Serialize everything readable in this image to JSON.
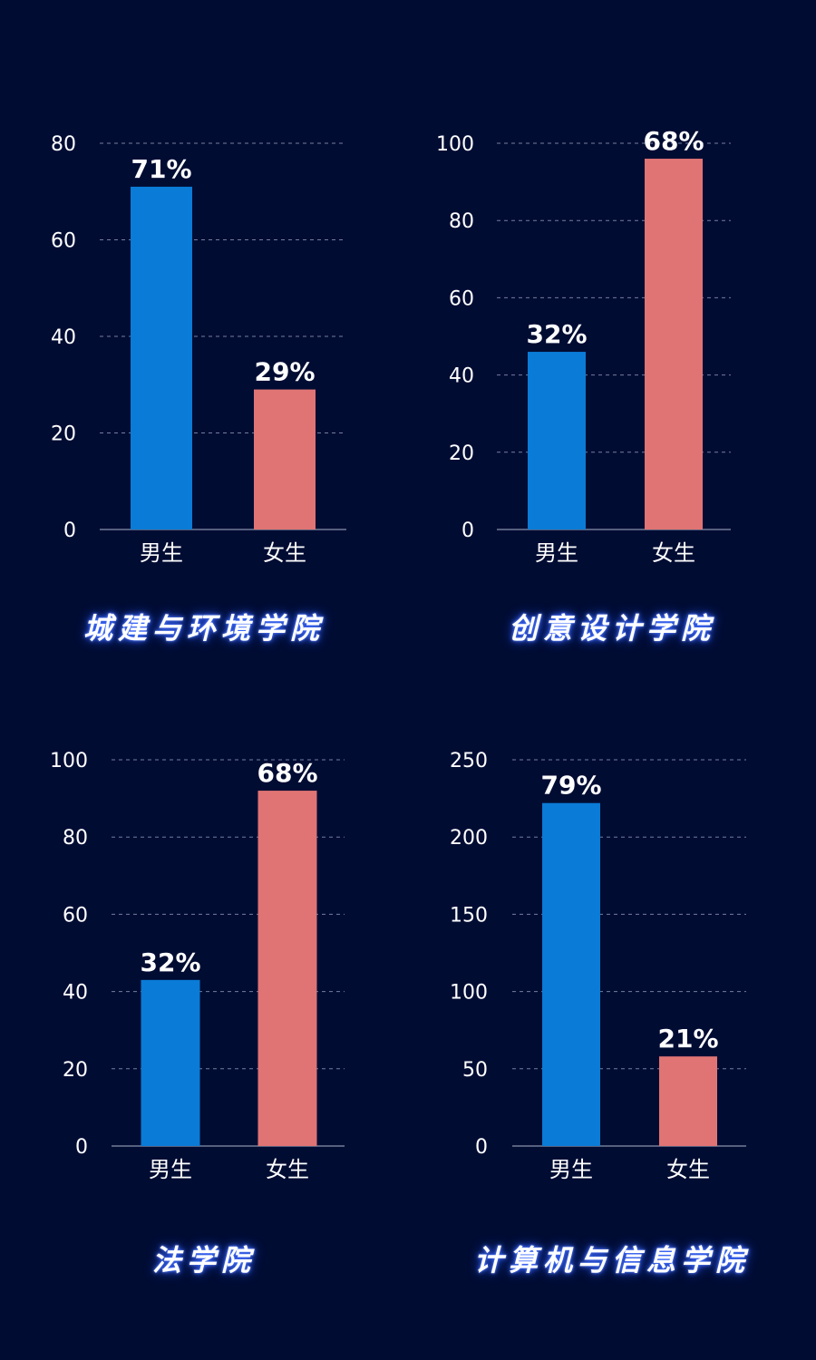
{
  "colors": {
    "background": "#010c33",
    "male_bar": "#0a7bd6",
    "female_bar": "#e07474",
    "grid": "#9aa4c4",
    "axis": "#8a92aa"
  },
  "chart_data": [
    {
      "type": "bar",
      "title": "城建与环境学院",
      "categories": [
        "男生",
        "女生"
      ],
      "values": [
        71,
        29
      ],
      "data_labels": [
        "71%",
        "29%"
      ],
      "ylim": [
        0,
        80
      ],
      "yticks": [
        0,
        20,
        40,
        60,
        80
      ],
      "grid": true
    },
    {
      "type": "bar",
      "title": "创意设计学院",
      "categories": [
        "男生",
        "女生"
      ],
      "values": [
        46,
        96
      ],
      "data_labels": [
        "32%",
        "68%"
      ],
      "ylim": [
        0,
        100
      ],
      "yticks": [
        0,
        20,
        40,
        60,
        80,
        100
      ],
      "grid": true
    },
    {
      "type": "bar",
      "title": "法学院",
      "categories": [
        "男生",
        "女生"
      ],
      "values": [
        43,
        92
      ],
      "data_labels": [
        "32%",
        "68%"
      ],
      "ylim": [
        0,
        100
      ],
      "yticks": [
        0,
        20,
        40,
        60,
        80,
        100
      ],
      "grid": true
    },
    {
      "type": "bar",
      "title": "计算机与信息学院",
      "categories": [
        "男生",
        "女生"
      ],
      "values": [
        222,
        58
      ],
      "data_labels": [
        "79%",
        "21%"
      ],
      "ylim": [
        0,
        250
      ],
      "yticks": [
        0,
        50,
        100,
        150,
        200,
        250
      ],
      "grid": true
    }
  ]
}
